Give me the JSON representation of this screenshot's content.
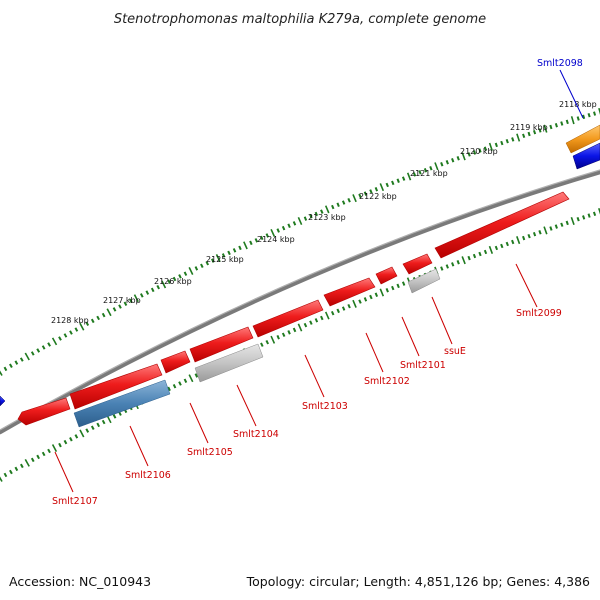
{
  "title": "Stenotrophomonas maltophilia K279a, complete genome",
  "footer": {
    "accession": "Accession: NC_010943",
    "summary": "Topology: circular; Length: 4,851,126 bp; Genes: 4,386"
  },
  "colors": {
    "backbone": "#7a7a7a",
    "cds": "#ee1c1c",
    "rna_grey": "#c4c4c4",
    "steel": "#4a82b4",
    "orange": "#f39a1e",
    "blue": "#0a14e6",
    "tick": "#1f7a1f",
    "label_red": "#cc0000",
    "label_blue": "#0000cc"
  },
  "ticks": [
    "2118 kbp",
    "2119 kbp",
    "2120 kbp",
    "2121 kbp",
    "2122 kbp",
    "2123 kbp",
    "2124 kbp",
    "2125 kbp",
    "2126 kbp",
    "2127 kbp",
    "2128 kbp"
  ],
  "genes": [
    "Smlt2098",
    "Smlt2099",
    "ssuE",
    "Smlt2101",
    "Smlt2102",
    "Smlt2103",
    "Smlt2104",
    "Smlt2105",
    "Smlt2106",
    "Smlt2107"
  ]
}
